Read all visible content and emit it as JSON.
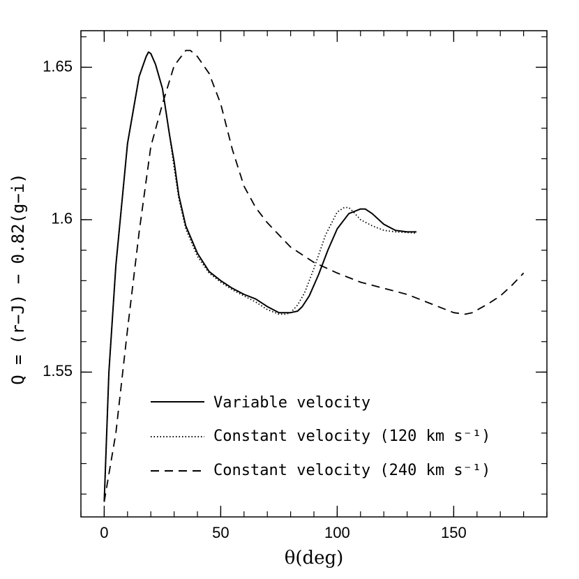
{
  "chart_data": {
    "type": "line",
    "title": "",
    "xlabel": "θ(deg)",
    "ylabel": "Q = (r−J) − 0.82(g−i)",
    "xlim": [
      -10,
      190
    ],
    "ylim": [
      1.5025,
      1.662
    ],
    "xticks": [
      0,
      50,
      100,
      150
    ],
    "xtick_labels": [
      "0",
      "50",
      "100",
      "150"
    ],
    "yticks": [
      1.55,
      1.6,
      1.65
    ],
    "ytick_labels": [
      "1.55",
      "1.6",
      "1.65"
    ],
    "legend_position": "lower-center",
    "series": [
      {
        "name": "Variable velocity",
        "style": "solid",
        "x": [
          0,
          2,
          5,
          10,
          15,
          18,
          19,
          20,
          22,
          25,
          28,
          30,
          32,
          35,
          40,
          45,
          50,
          55,
          60,
          65,
          70,
          75,
          80,
          83,
          85,
          88,
          92,
          96,
          100,
          105,
          110,
          112,
          115,
          120,
          125,
          130,
          134
        ],
        "y": [
          1.5075,
          1.55,
          1.585,
          1.625,
          1.647,
          1.6535,
          1.655,
          1.6545,
          1.651,
          1.643,
          1.628,
          1.619,
          1.608,
          1.598,
          1.589,
          1.583,
          1.58,
          1.5775,
          1.5755,
          1.574,
          1.5715,
          1.5695,
          1.5695,
          1.57,
          1.5715,
          1.575,
          1.582,
          1.59,
          1.597,
          1.602,
          1.6035,
          1.6035,
          1.602,
          1.5985,
          1.5965,
          1.596,
          1.596
        ]
      },
      {
        "name": "Constant velocity (120 km s⁻¹)",
        "style": "dotted",
        "x": [
          0,
          2,
          5,
          10,
          15,
          18,
          19,
          20,
          22,
          25,
          28,
          30,
          32,
          35,
          40,
          45,
          50,
          55,
          60,
          65,
          70,
          75,
          78,
          80,
          83,
          86,
          90,
          95,
          100,
          103,
          105,
          107,
          110,
          115,
          120,
          125,
          130,
          134
        ],
        "y": [
          1.5075,
          1.55,
          1.585,
          1.625,
          1.647,
          1.6535,
          1.655,
          1.6545,
          1.651,
          1.643,
          1.628,
          1.617,
          1.607,
          1.597,
          1.588,
          1.5825,
          1.5795,
          1.577,
          1.575,
          1.573,
          1.5705,
          1.569,
          1.569,
          1.5695,
          1.572,
          1.576,
          1.584,
          1.595,
          1.6025,
          1.604,
          1.604,
          1.6025,
          1.6,
          1.598,
          1.5965,
          1.596,
          1.5958,
          1.5956
        ]
      },
      {
        "name": "Constant velocity (240 km s⁻¹)",
        "style": "dashed",
        "x": [
          0,
          5,
          10,
          15,
          20,
          25,
          30,
          35,
          37,
          40,
          45,
          50,
          55,
          60,
          65,
          70,
          80,
          90,
          100,
          110,
          120,
          130,
          140,
          150,
          155,
          158,
          165,
          170,
          175,
          180
        ],
        "y": [
          1.5075,
          1.53,
          1.564,
          1.596,
          1.624,
          1.638,
          1.6505,
          1.6555,
          1.6555,
          1.6535,
          1.648,
          1.638,
          1.623,
          1.611,
          1.604,
          1.599,
          1.591,
          1.586,
          1.5825,
          1.5795,
          1.5775,
          1.5755,
          1.5725,
          1.5695,
          1.569,
          1.5695,
          1.5725,
          1.575,
          1.5785,
          1.5825
        ]
      }
    ]
  }
}
